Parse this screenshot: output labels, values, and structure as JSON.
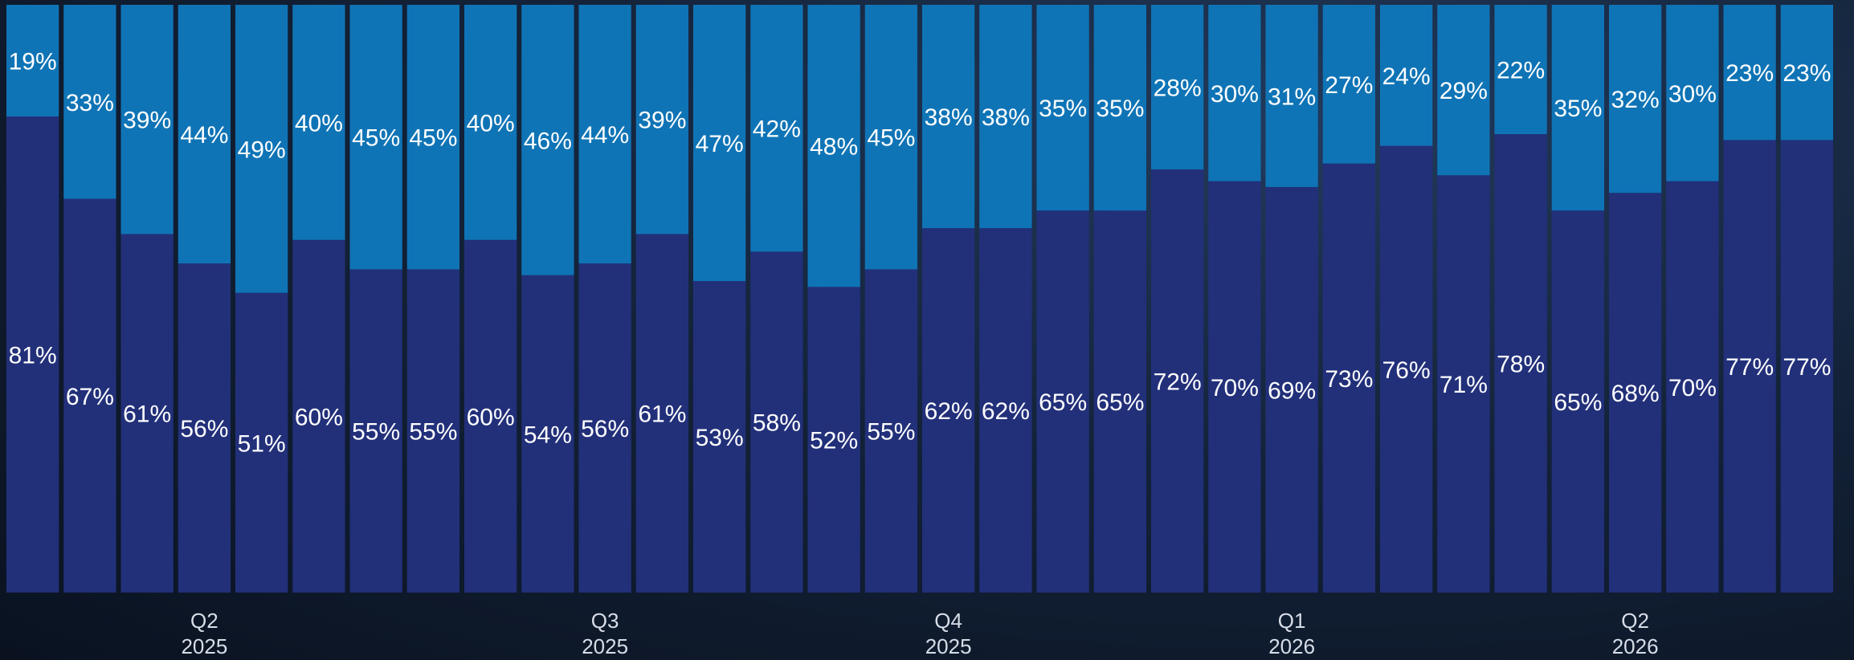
{
  "chart_data": {
    "type": "bar",
    "stacked": true,
    "percent": true,
    "ylim": [
      0,
      100
    ],
    "grid": false,
    "legend": "none",
    "colors": {
      "bottom": "#22307a",
      "top": "#0f74b6",
      "background": "#0f1b2e",
      "label": "#ffffff",
      "tick": "#d7dde7"
    },
    "series": [
      {
        "values": [
          81,
          67,
          61,
          56,
          51,
          60,
          55,
          55,
          60,
          54,
          56,
          61,
          53,
          58,
          52,
          55,
          62,
          62,
          65,
          65,
          72,
          70,
          69,
          73,
          76,
          71,
          78,
          65,
          68,
          70,
          77,
          77
        ]
      },
      {
        "values": [
          19,
          33,
          39,
          44,
          49,
          40,
          45,
          45,
          40,
          46,
          44,
          39,
          47,
          42,
          48,
          45,
          38,
          38,
          35,
          35,
          28,
          30,
          31,
          27,
          24,
          29,
          22,
          35,
          32,
          30,
          23,
          23
        ]
      }
    ],
    "labels_bottom": [
      "81%",
      "67%",
      "61%",
      "56%",
      "51%",
      "60%",
      "55%",
      "55%",
      "60%",
      "54%",
      "56%",
      "61%",
      "53%",
      "58%",
      "52%",
      "55%",
      "62%",
      "62%",
      "65%",
      "65%",
      "72%",
      "70%",
      "69%",
      "73%",
      "76%",
      "71%",
      "78%",
      "65%",
      "68%",
      "70%",
      "77%",
      "77%"
    ],
    "labels_top": [
      "19%",
      "33%",
      "39%",
      "44%",
      "49%",
      "40%",
      "45%",
      "45%",
      "40%",
      "46%",
      "44%",
      "39%",
      "47%",
      "42%",
      "48%",
      "45%",
      "38%",
      "38%",
      "35%",
      "35%",
      "28%",
      "30%",
      "31%",
      "27%",
      "24%",
      "29%",
      "22%",
      "35%",
      "32%",
      "30%",
      "23%",
      "23%"
    ],
    "x_ticks": [
      {
        "bar": 3,
        "line1": "Q2",
        "line2": "2025"
      },
      {
        "bar": 10,
        "line1": "Q3",
        "line2": "2025"
      },
      {
        "bar": 16,
        "line1": "Q4",
        "line2": "2025"
      },
      {
        "bar": 22,
        "line1": "Q1",
        "line2": "2026"
      },
      {
        "bar": 28,
        "line1": "Q2",
        "line2": "2026"
      }
    ]
  }
}
